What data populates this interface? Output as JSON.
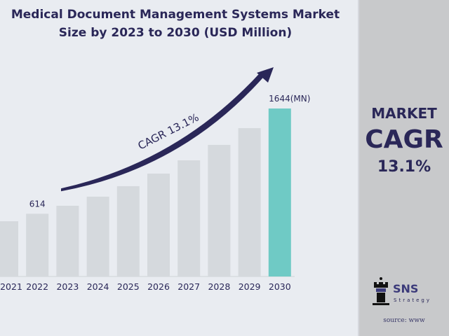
{
  "chart_data": {
    "type": "bar",
    "title": "Medical Document Management Systems Market Size by 2023 to 2030 (USD Million)",
    "categories": [
      "2021",
      "2022",
      "2023",
      "2024",
      "2025",
      "2026",
      "2027",
      "2028",
      "2029",
      "2030"
    ],
    "values": [
      541,
      614,
      692,
      781,
      884,
      1007,
      1137,
      1288,
      1452,
      1644
    ],
    "data_labels": {
      "2022": "614",
      "2030": "1644(MN)"
    },
    "annotation": "CAGR 13.1%",
    "ylim": [
      0,
      1700
    ],
    "grid": false,
    "colors": {
      "bar": "#d5d9dd",
      "highlight": "#6fcac5",
      "arrow": "#2a2758"
    }
  },
  "panel": {
    "line1": "MARKET",
    "line2": "CAGR",
    "line3": "13.1%",
    "brand": "SNS",
    "brand_sub": "Strategy",
    "source": "source: www"
  }
}
